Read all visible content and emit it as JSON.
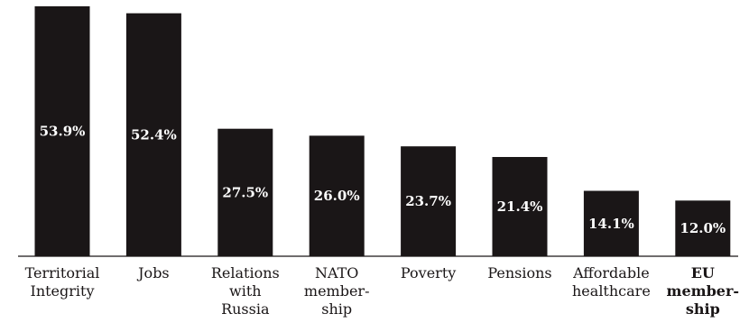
{
  "chart_data": {
    "type": "bar",
    "categories": [
      {
        "lines": [
          "Territorial",
          "Integrity"
        ],
        "bold": false
      },
      {
        "lines": [
          "Jobs"
        ],
        "bold": false
      },
      {
        "lines": [
          "Relations",
          "with",
          "Russia"
        ],
        "bold": false
      },
      {
        "lines": [
          "NATO",
          "member-",
          "ship"
        ],
        "bold": false
      },
      {
        "lines": [
          "Poverty"
        ],
        "bold": false
      },
      {
        "lines": [
          "Pensions"
        ],
        "bold": false
      },
      {
        "lines": [
          "Affordable",
          "healthcare"
        ],
        "bold": false
      },
      {
        "lines": [
          "EU",
          "member-",
          "ship"
        ],
        "bold": true
      }
    ],
    "values": [
      53.9,
      52.4,
      27.5,
      26.0,
      23.7,
      21.4,
      14.1,
      12.0
    ],
    "value_labels": [
      "53.9%",
      "52.4%",
      "27.5%",
      "26.0%",
      "23.7%",
      "21.4%",
      "14.1%",
      "12.0%"
    ],
    "title": "",
    "xlabel": "",
    "ylabel": "",
    "ylim": [
      0,
      53.9
    ],
    "grid": false,
    "legend": "none",
    "bar_color": "#1a1617",
    "label_color": "#ffffff"
  }
}
